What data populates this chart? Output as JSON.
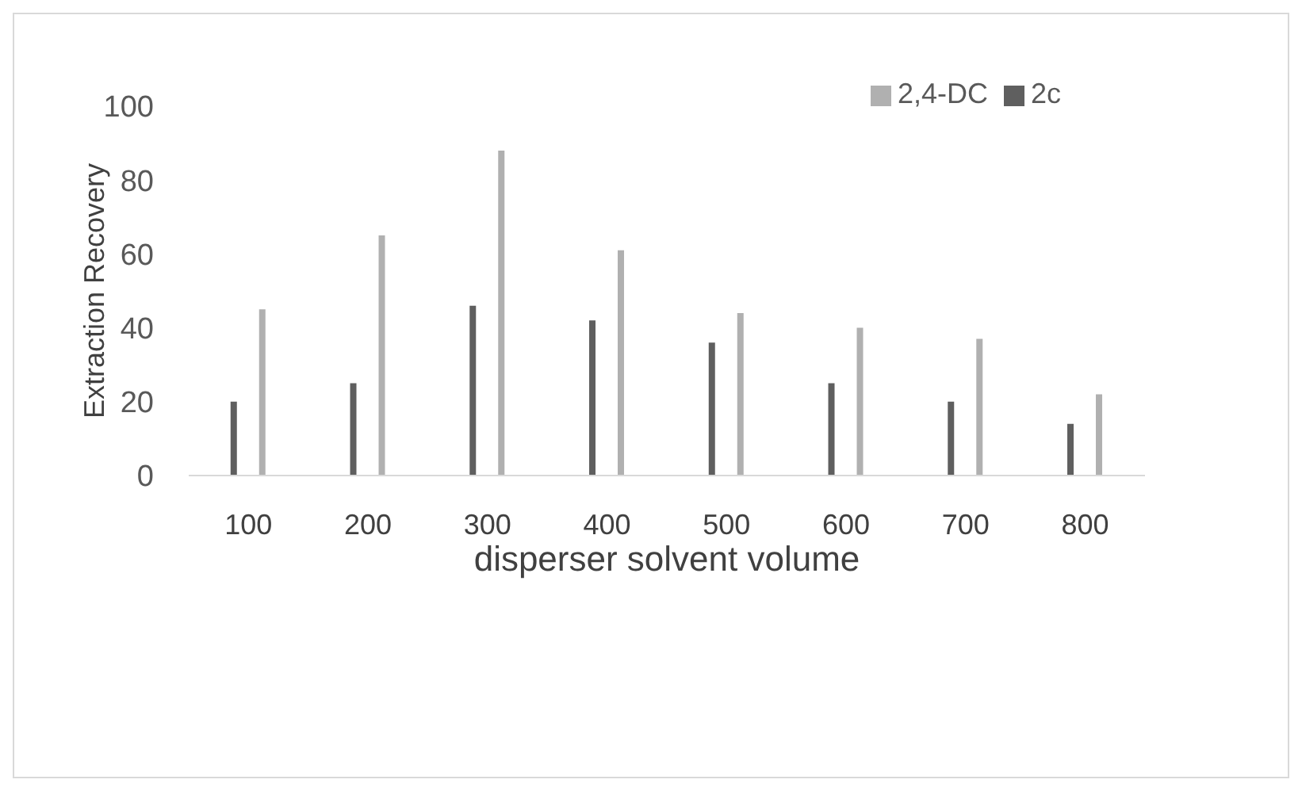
{
  "chart_data": {
    "type": "bar",
    "categories": [
      "100",
      "200",
      "300",
      "400",
      "500",
      "600",
      "700",
      "800"
    ],
    "series": [
      {
        "name": "2c",
        "color": "#5f5f5f",
        "values": [
          20,
          25,
          46,
          42,
          36,
          25,
          20,
          14
        ]
      },
      {
        "name": "2,4-DC",
        "color": "#b0b0b0",
        "values": [
          45,
          65,
          88,
          61,
          44,
          40,
          37,
          22
        ]
      }
    ],
    "xlabel": "disperser solvent volume",
    "ylabel": "Extraction Recovery",
    "ylim": [
      0,
      100
    ],
    "yticks": [
      0,
      20,
      40,
      60,
      80,
      100
    ],
    "grid": false,
    "legend": "top right"
  }
}
